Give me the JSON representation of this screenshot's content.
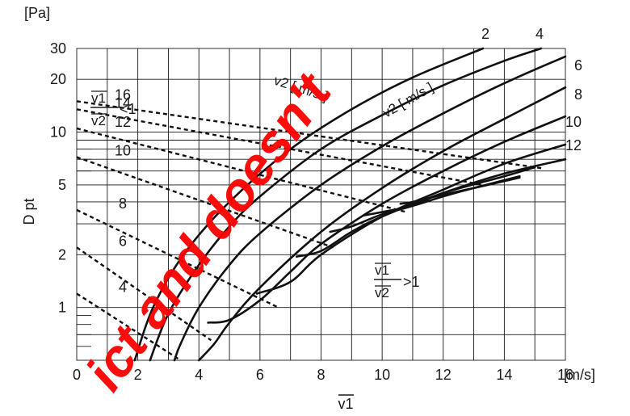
{
  "chart_data": {
    "type": "line",
    "title": "",
    "xlabel": "v1",
    "ylabel": "D pt",
    "x_unit": "[m/s]",
    "y_unit": "[Pa]",
    "xlim": [
      0,
      16
    ],
    "ylim": [
      0.5,
      30
    ],
    "y_scale": "log",
    "grid": true,
    "x_ticks": [
      "0",
      "2",
      "4",
      "6",
      "8",
      "10",
      "12",
      "14",
      "16"
    ],
    "y_ticks": [
      {
        "value": 1,
        "label": "1"
      },
      {
        "value": 2,
        "label": "2"
      },
      {
        "value": 5,
        "label": "5"
      },
      {
        "value": 10,
        "label": "10"
      },
      {
        "value": 20,
        "label": "20"
      },
      {
        "value": 30,
        "label": "30"
      }
    ],
    "curve_family_label": "v2 [ m/s ]",
    "dashed_family_label": "v2 [ m/s ]",
    "region_labels": {
      "upper_left": {
        "num": "v1",
        "den": "v2",
        "rel": "<1"
      },
      "lower_right": {
        "num": "v1",
        "den": "v2",
        "rel": ">1"
      }
    },
    "series": [
      {
        "name": "2",
        "x": [
          1.9,
          2.5,
          3.5,
          5,
          7,
          9,
          11,
          13.3
        ],
        "y": [
          0.5,
          1.0,
          2.0,
          4.0,
          8.0,
          13.5,
          20.5,
          30
        ]
      },
      {
        "name": "4",
        "x": [
          2.4,
          3,
          4,
          5,
          6,
          8,
          10,
          12,
          14,
          15.2
        ],
        "y": [
          0.5,
          0.92,
          1.75,
          2.9,
          4.3,
          8.0,
          12.5,
          18.5,
          25.5,
          30
        ]
      },
      {
        "name": "6",
        "x": [
          3.2,
          3.4,
          4,
          5,
          6,
          8,
          10,
          12,
          14,
          16
        ],
        "y": [
          0.5,
          0.62,
          1.0,
          1.75,
          2.65,
          5.0,
          8.3,
          12.8,
          19.0,
          27.0
        ]
      },
      {
        "name": "8",
        "x": [
          4.0,
          4.5,
          5,
          6,
          8,
          10,
          12,
          14,
          16
        ],
        "y": [
          0.5,
          0.62,
          0.82,
          1.3,
          2.7,
          4.8,
          7.8,
          11.9,
          18.0
        ]
      },
      {
        "name": "10",
        "x": [
          4.3,
          5,
          6,
          7,
          8,
          10,
          12,
          14,
          16
        ],
        "y": [
          0.82,
          0.85,
          1.1,
          1.6,
          2.3,
          3.9,
          6.0,
          8.8,
          12.3
        ]
      },
      {
        "name": "12",
        "x": [
          5.9,
          7,
          8,
          10,
          12,
          14,
          16
        ],
        "y": [
          1.2,
          1.4,
          2.0,
          3.3,
          4.7,
          6.6,
          8.5
        ]
      },
      {
        "name": "",
        "x": [
          7.2,
          8,
          9,
          10,
          12,
          14,
          16
        ],
        "y": [
          1.95,
          2.1,
          2.7,
          3.3,
          4.5,
          5.8,
          7.0
        ]
      },
      {
        "name": "",
        "x": [
          8.3,
          9,
          10,
          11,
          12,
          14,
          15
        ],
        "y": [
          2.7,
          2.9,
          3.4,
          3.8,
          4.5,
          5.6,
          6.3
        ]
      },
      {
        "name": "",
        "x": [
          9.4,
          10,
          11,
          12,
          13,
          14.5
        ],
        "y": [
          3.35,
          3.5,
          3.8,
          4.3,
          4.8,
          5.6
        ]
      },
      {
        "name": "",
        "x": [
          10.6,
          11,
          12,
          13,
          14.5
        ],
        "y": [
          3.9,
          4.0,
          4.4,
          4.8,
          5.5
        ]
      }
    ],
    "v2_dashed_lines": [
      {
        "label": "4",
        "x": [
          0.0,
          3.4
        ],
        "y": [
          1.2,
          0.5
        ]
      },
      {
        "label": "6",
        "x": [
          0.0,
          4.4
        ],
        "y": [
          2.2,
          0.65
        ]
      },
      {
        "label": "8",
        "x": [
          0.0,
          6.6
        ],
        "y": [
          3.6,
          1.0
        ]
      },
      {
        "label": "10",
        "x": [
          0.0,
          8.4
        ],
        "y": [
          7.2,
          2.2
        ]
      },
      {
        "label": "12",
        "x": [
          0.0,
          10.8
        ],
        "y": [
          10.5,
          3.5
        ]
      },
      {
        "label": "14",
        "x": [
          0.0,
          13.3
        ],
        "y": [
          13.5,
          5.0
        ]
      },
      {
        "label": "16",
        "x": [
          0.0,
          15.3
        ],
        "y": [
          15.0,
          6.2
        ]
      }
    ],
    "watermark": "ict and doesn't"
  }
}
